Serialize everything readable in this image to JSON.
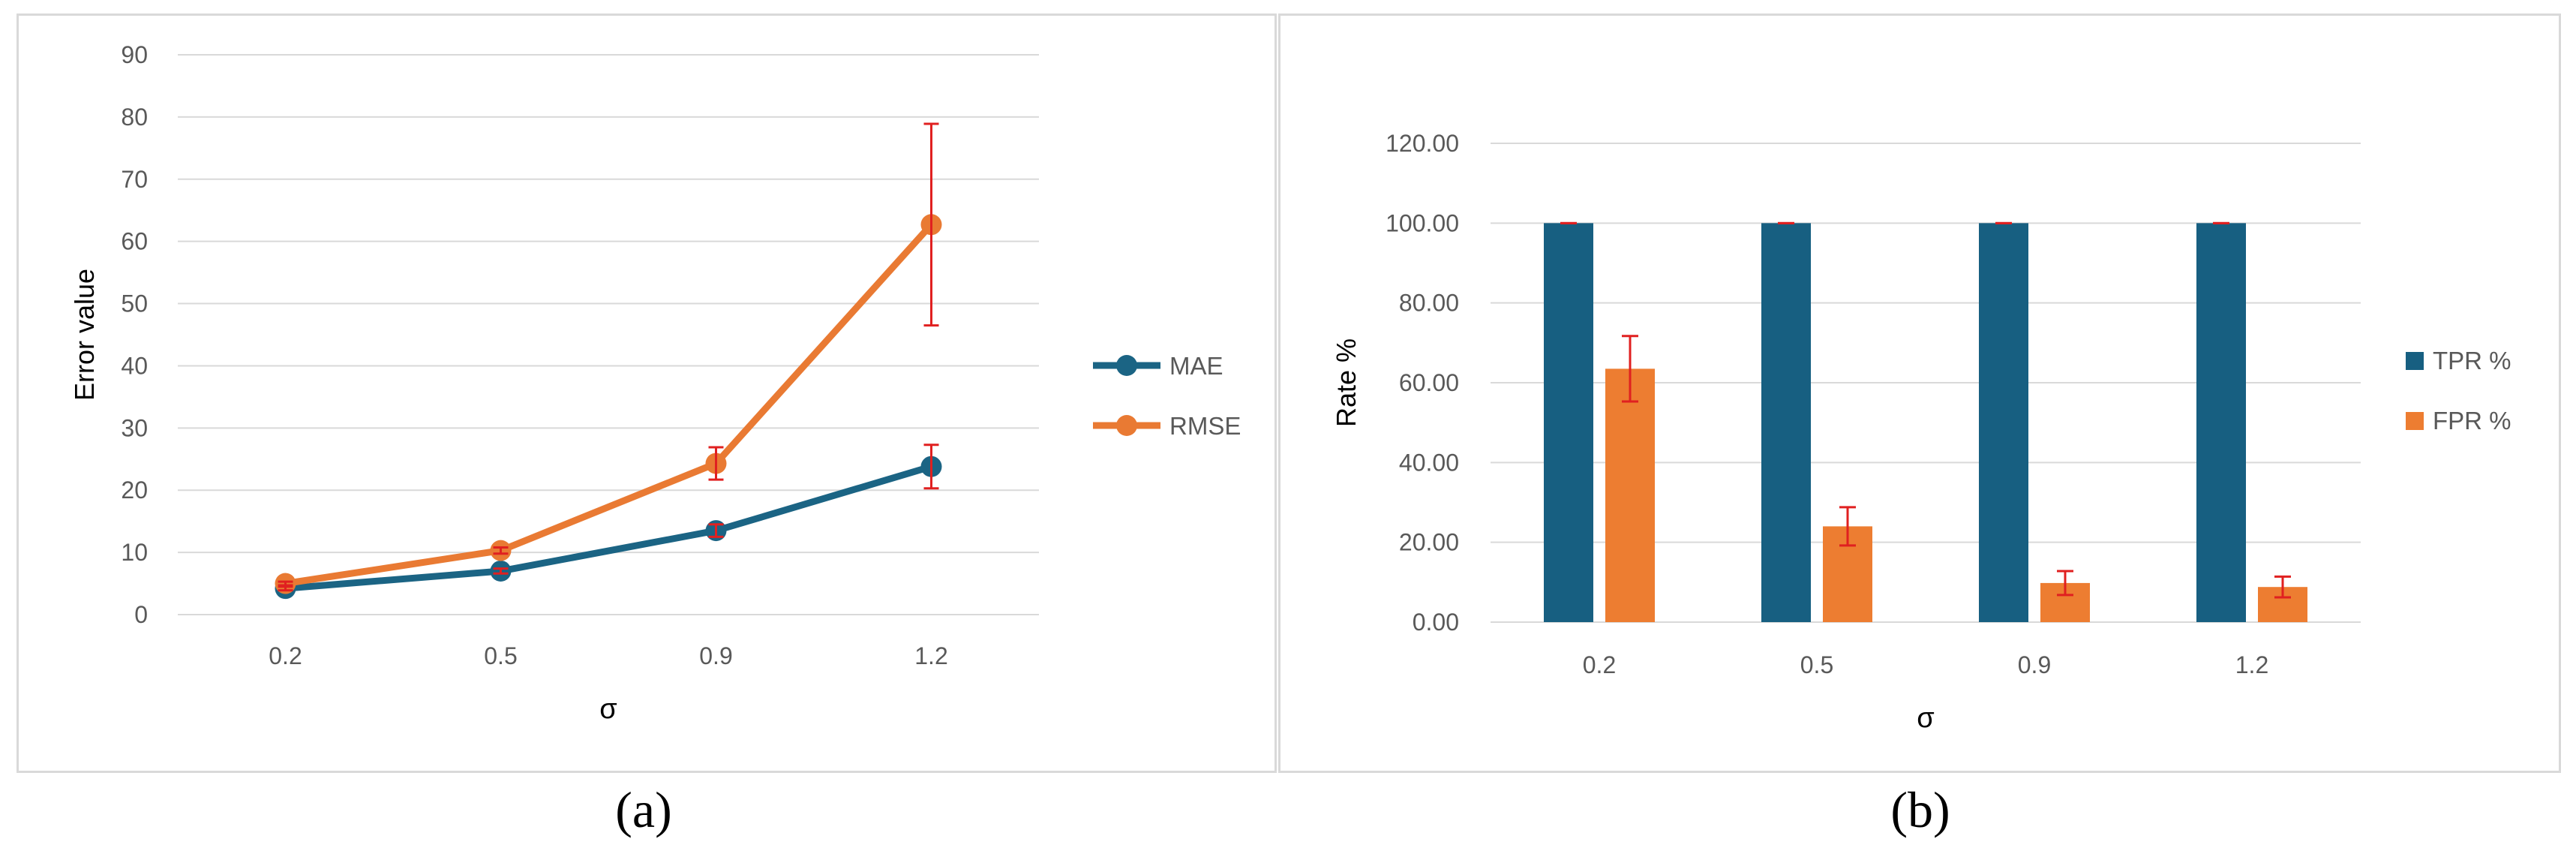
{
  "panels": {
    "a_label": "(a)",
    "b_label": "(b)"
  },
  "chart_data": [
    {
      "type": "line",
      "categories": [
        "0.2",
        "0.5",
        "0.9",
        "1.2"
      ],
      "xlabel": "σ",
      "ylabel": "Error value",
      "ylim": [
        0,
        90
      ],
      "yticks": [
        "0",
        "10",
        "20",
        "30",
        "40",
        "50",
        "60",
        "70",
        "80",
        "90"
      ],
      "grid": true,
      "legend": "right",
      "series": [
        {
          "name": "MAE",
          "color": "#1b6484",
          "values": [
            4.2,
            7.0,
            13.5,
            23.8
          ],
          "error": [
            0.3,
            0.4,
            1.0,
            3.5
          ]
        },
        {
          "name": "RMSE",
          "color": "#e97a33",
          "values": [
            5.0,
            10.3,
            24.3,
            62.7
          ],
          "error": [
            0.3,
            0.5,
            2.6,
            16.2
          ]
        }
      ],
      "error_bar_color": "#e02020"
    },
    {
      "type": "bar",
      "categories": [
        "0.2",
        "0.5",
        "0.9",
        "1.2"
      ],
      "xlabel": "σ",
      "ylabel": "Rate %",
      "ylim": [
        0,
        120
      ],
      "yticks": [
        "0.00",
        "20.00",
        "40.00",
        "60.00",
        "80.00",
        "100.00",
        "120.00"
      ],
      "grid": true,
      "legend": "right",
      "series": [
        {
          "name": "TPR %",
          "color": "#175f81",
          "values": [
            100,
            100,
            100,
            100
          ],
          "error": [
            0,
            0,
            0,
            0
          ]
        },
        {
          "name": "FPR %",
          "color": "#ed7d31",
          "values": [
            63.5,
            24.0,
            9.8,
            8.8
          ],
          "error": [
            8.2,
            4.8,
            3.0,
            2.6
          ]
        }
      ],
      "error_bar_color": "#e02020"
    }
  ]
}
